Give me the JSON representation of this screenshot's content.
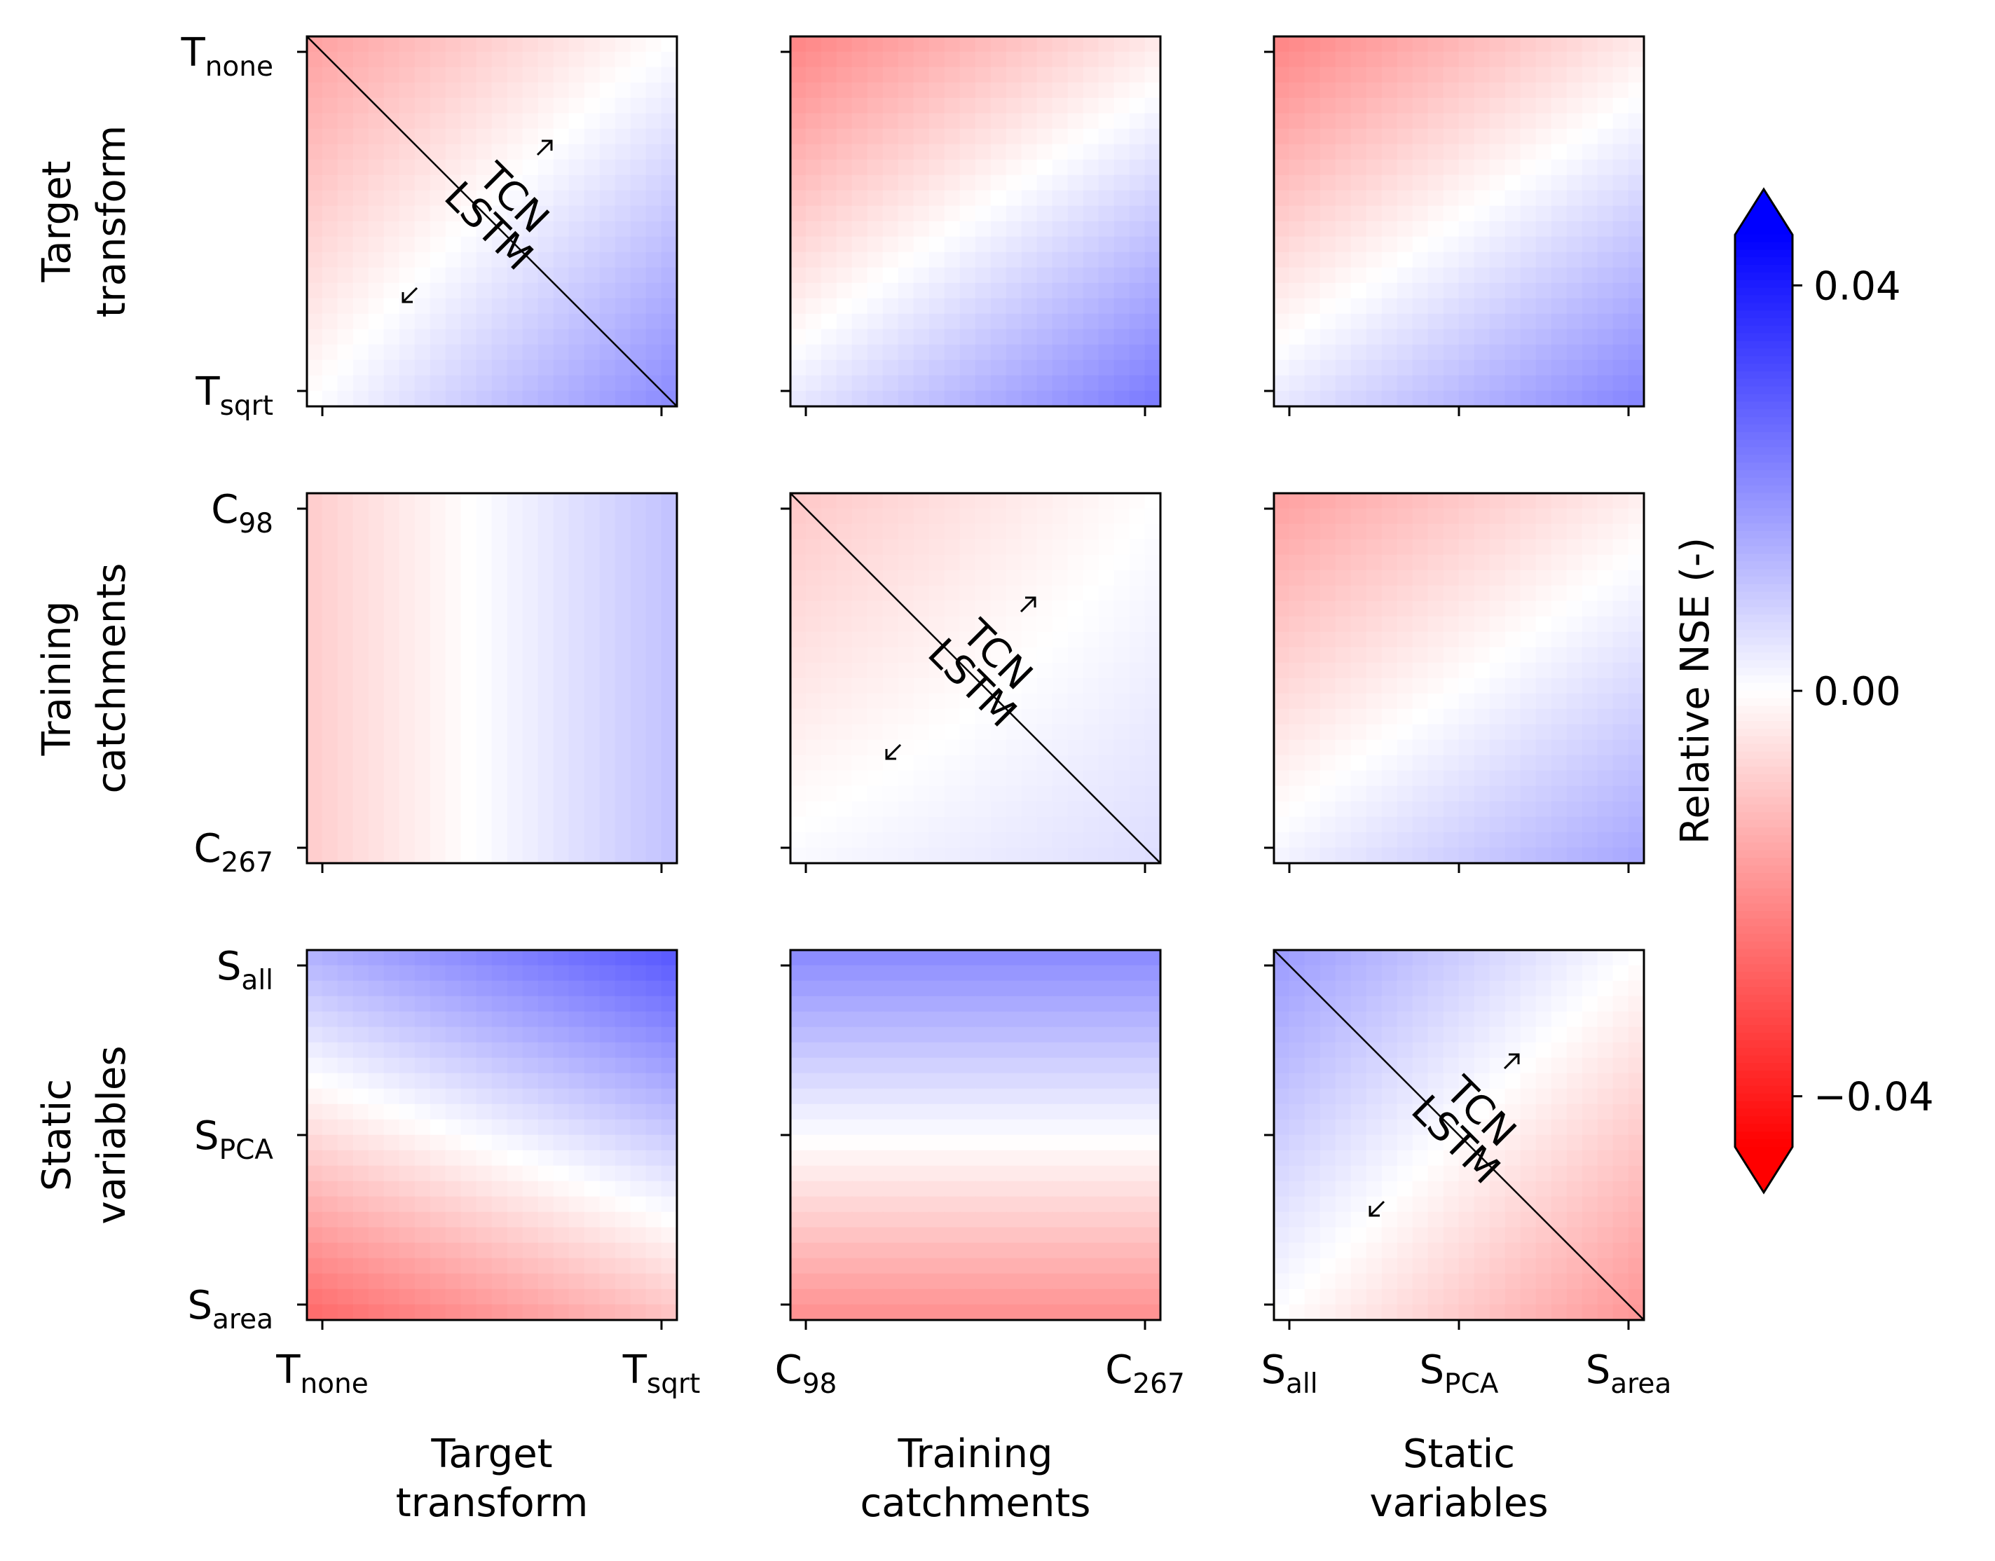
{
  "chart_data": {
    "type": "heatmap",
    "description_note": "",
    "row_labels": [
      [
        "Target",
        "transform"
      ],
      [
        "Training",
        "catchments"
      ],
      [
        "Static",
        "variables"
      ]
    ],
    "col_labels": [
      [
        "Target",
        "transform"
      ],
      [
        "Training",
        "catchments"
      ],
      [
        "Static",
        "variables"
      ]
    ],
    "ticks": [
      [
        {
          "base": "T",
          "sub": "none"
        },
        {
          "base": "T",
          "sub": "sqrt"
        }
      ],
      [
        {
          "base": "C",
          "sub": "98"
        },
        {
          "base": "C",
          "sub": "267"
        }
      ],
      [
        {
          "base": "S",
          "sub": "all"
        },
        {
          "base": "S",
          "sub": "PCA"
        },
        {
          "base": "S",
          "sub": "area"
        }
      ]
    ],
    "diagonal_labels": {
      "upper": "TCN",
      "lower": "LSTM"
    },
    "colorbar": {
      "label": "Relative NSE (-)",
      "vmin": -0.045,
      "vmax": 0.045,
      "ticks": [
        {
          "value": 0.04,
          "label": "0.04"
        },
        {
          "value": 0.0,
          "label": "0.00"
        },
        {
          "value": -0.04,
          "label": "−0.04"
        }
      ],
      "colors": {
        "low": "#ff0000",
        "mid": "#ffffff",
        "high": "#0000ff"
      },
      "extend": "both"
    },
    "panels": [
      {
        "row": 0,
        "col": 0,
        "diagonal": true,
        "corners": {
          "tl": -0.017,
          "tr": 0.0,
          "bl": 0.0,
          "br": 0.021
        }
      },
      {
        "row": 0,
        "col": 1,
        "diagonal": false,
        "corners": {
          "tl": -0.022,
          "tr": -0.004,
          "bl": 0.004,
          "br": 0.024
        }
      },
      {
        "row": 0,
        "col": 2,
        "diagonal": false,
        "corners": {
          "tl": -0.022,
          "tr": -0.004,
          "bl": 0.004,
          "br": 0.022
        }
      },
      {
        "row": 1,
        "col": 0,
        "diagonal": false,
        "corners": {
          "tl": -0.009,
          "tr": 0.011,
          "bl": -0.009,
          "br": 0.011
        }
      },
      {
        "row": 1,
        "col": 1,
        "diagonal": true,
        "corners": {
          "tl": -0.01,
          "tr": 0.0,
          "bl": 0.001,
          "br": 0.006
        }
      },
      {
        "row": 1,
        "col": 2,
        "diagonal": false,
        "corners": {
          "tl": -0.017,
          "tr": -0.003,
          "bl": 0.002,
          "br": 0.016
        }
      },
      {
        "row": 2,
        "col": 0,
        "diagonal": false,
        "corners": {
          "tl": 0.014,
          "tr": 0.03,
          "bl": -0.027,
          "br": -0.011
        }
      },
      {
        "row": 2,
        "col": 1,
        "diagonal": false,
        "corners": {
          "tl": 0.021,
          "tr": 0.021,
          "bl": -0.02,
          "br": -0.02
        }
      },
      {
        "row": 2,
        "col": 2,
        "diagonal": true,
        "corners": {
          "tl": 0.018,
          "tr": 0.0,
          "bl": 0.0,
          "br": -0.019
        }
      }
    ]
  }
}
